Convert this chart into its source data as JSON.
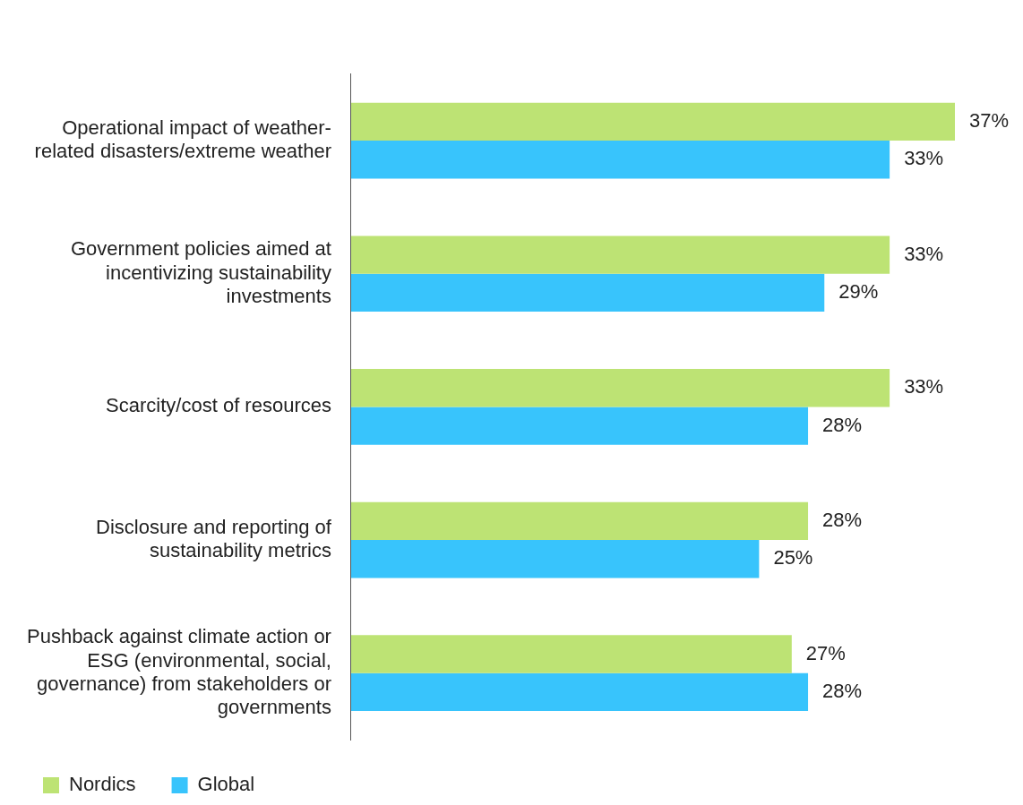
{
  "chart_data": {
    "type": "bar",
    "orientation": "horizontal",
    "categories": [
      "Operational impact of weather-related disasters/extreme weather",
      "Government policies aimed at incentivizing sustainability investments",
      "Scarcity/cost of resources",
      "Disclosure and reporting of sustainability metrics",
      "Pushback against climate action or ESG (environmental, social, governance) from stakeholders or governments"
    ],
    "series": [
      {
        "name": "Nordics",
        "color": "#bde374",
        "values": [
          37,
          33,
          33,
          28,
          27
        ],
        "value_labels": [
          "37%",
          "33%",
          "33%",
          "28%",
          "27%"
        ]
      },
      {
        "name": "Global",
        "color": "#38c4fc",
        "values": [
          33,
          29,
          28,
          25,
          28
        ],
        "value_labels": [
          "33%",
          "29%",
          "28%",
          "25%",
          "28%"
        ]
      }
    ],
    "legend": "bottom left"
  }
}
